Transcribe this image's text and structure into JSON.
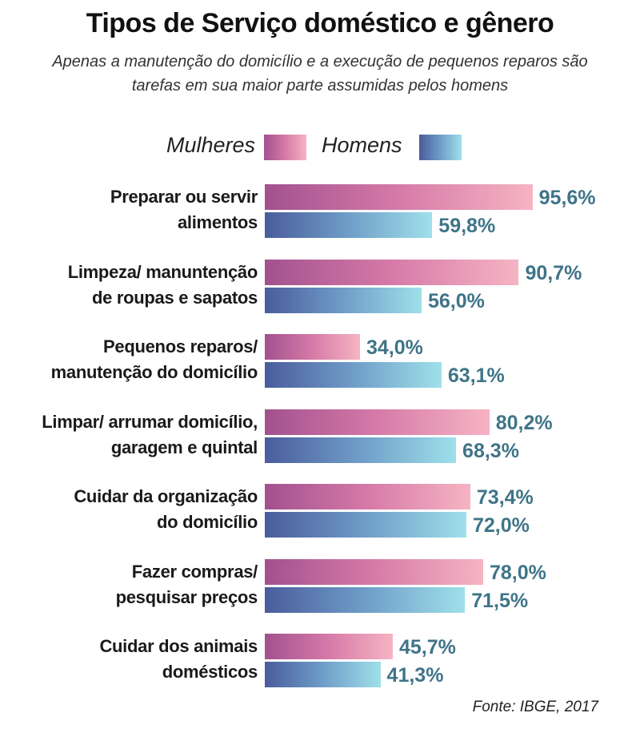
{
  "chart_data": {
    "type": "bar",
    "orientation": "horizontal",
    "title": "Tipos de Serviço doméstico e gênero",
    "subtitle": "Apenas a manutenção do domicílio e a execução de pequenos reparos são tarefas em sua maior parte assumidas pelos homens",
    "categories": [
      [
        "Preparar ou servir",
        "alimentos"
      ],
      [
        "Limpeza/ manuntenção",
        "de roupas e sapatos"
      ],
      [
        "Pequenos reparos/",
        "manutenção do domicílio"
      ],
      [
        "Limpar/ arrumar domicílio,",
        "garagem e quintal"
      ],
      [
        "Cuidar da organização",
        "do domicílio"
      ],
      [
        "Fazer compras/",
        "pesquisar preços"
      ],
      [
        "Cuidar dos animais",
        "domésticos"
      ]
    ],
    "series": [
      {
        "name": "Mulheres",
        "values": [
          95.6,
          90.7,
          34.0,
          80.2,
          73.4,
          78.0,
          45.7
        ],
        "labels": [
          "95,6%",
          "90,7%",
          "34,0%",
          "80,2%",
          "73,4%",
          "78,0%",
          "45,7%"
        ],
        "color_start": "#a2518f",
        "color_end": "#f6b4c3"
      },
      {
        "name": "Homens",
        "values": [
          59.8,
          56.0,
          63.1,
          68.3,
          72.0,
          71.5,
          41.3
        ],
        "labels": [
          "59,8%",
          "56,0%",
          "63,1%",
          "68,3%",
          "72,0%",
          "71,5%",
          "41,3%"
        ],
        "color_start": "#4a5c9c",
        "color_end": "#9fe0ea"
      }
    ],
    "value_label_color": "#3f7488",
    "xlim": [
      0,
      100
    ],
    "grid": false,
    "legend_position": "top",
    "source": "Fonte: IBGE, 2017"
  }
}
